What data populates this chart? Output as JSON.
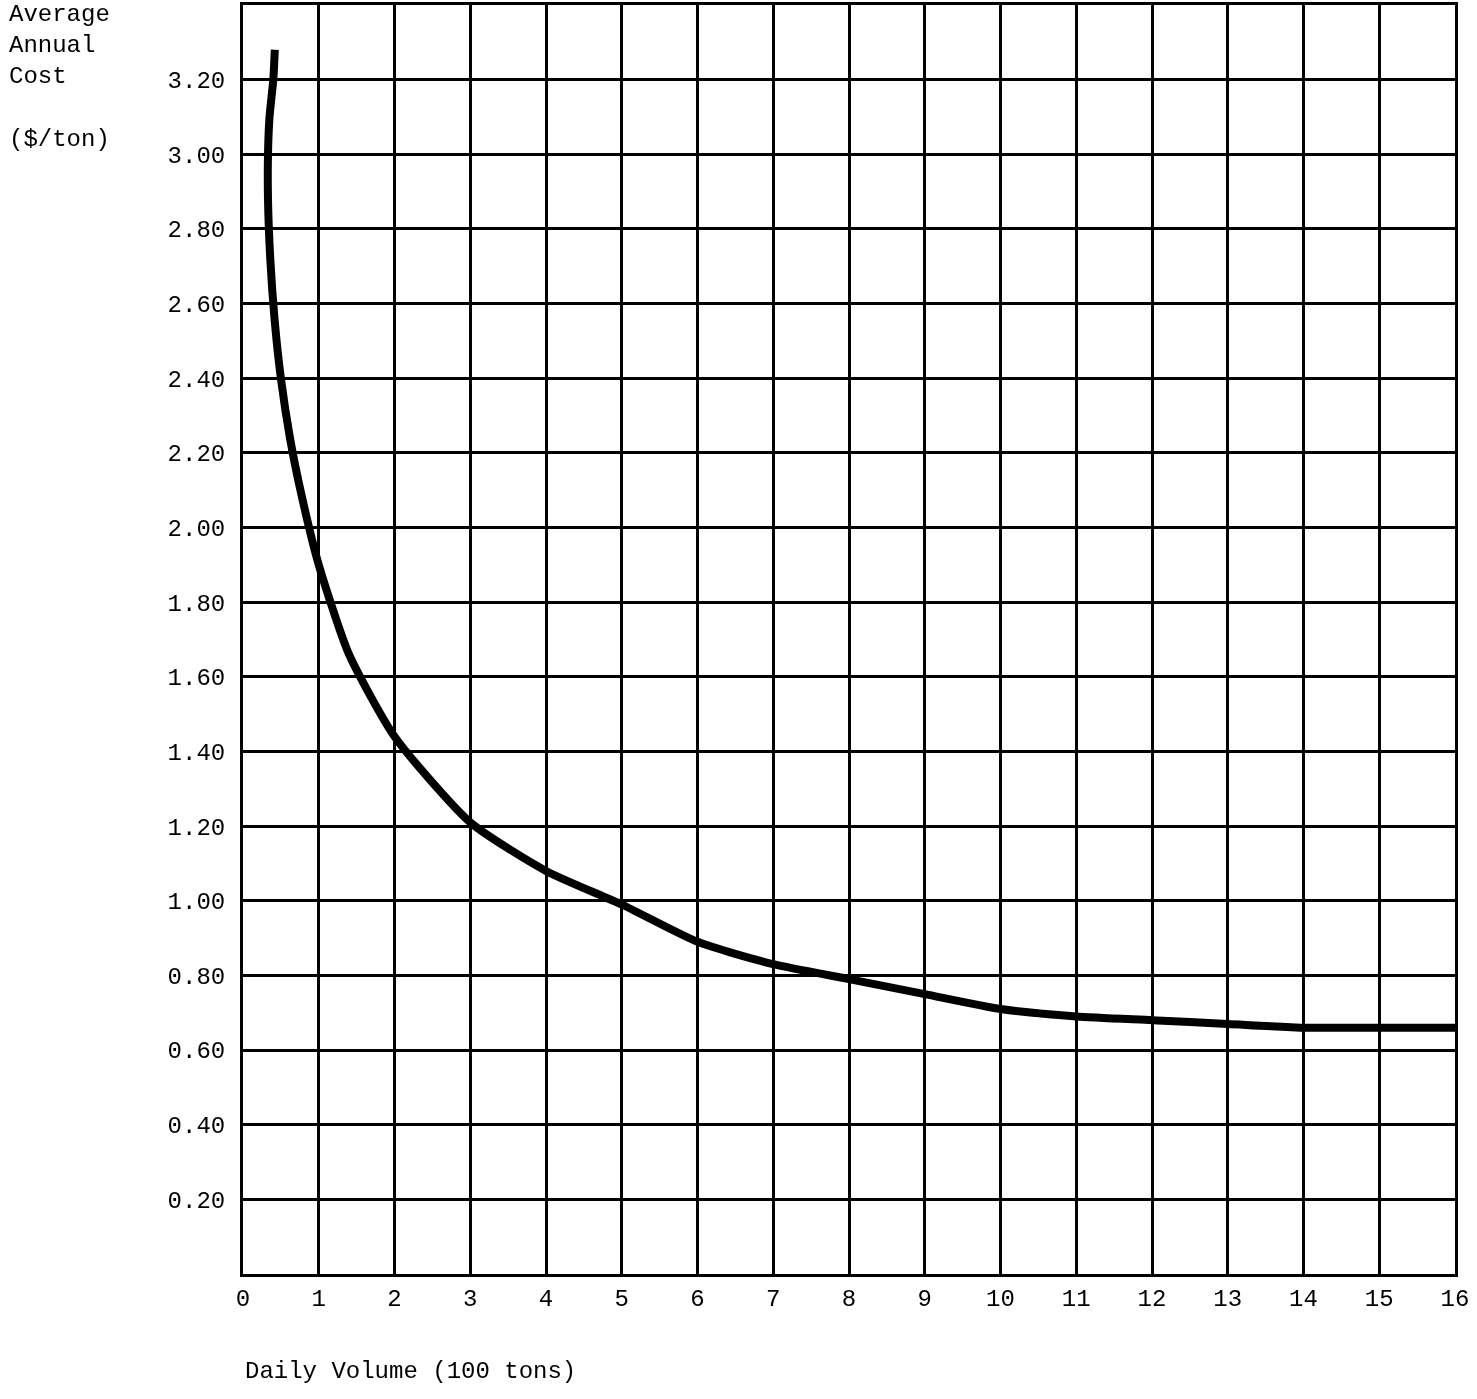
{
  "chart_data": {
    "type": "line",
    "xlabel": "Daily Volume (100 tons)",
    "ylabel": "Average\nAnnual\nCost\n\n($/ton)",
    "x": [
      0.42,
      0.4,
      0.35,
      0.33,
      0.33,
      0.36,
      0.42,
      0.5,
      0.62,
      0.78,
      1,
      1.4,
      2,
      3,
      4,
      5,
      6,
      7,
      8,
      9,
      10,
      11,
      12,
      13,
      14,
      15,
      16
    ],
    "series": [
      {
        "color": "#000000",
        "values": [
          3.28,
          3.2,
          3.1,
          3.0,
          2.88,
          2.72,
          2.55,
          2.4,
          2.24,
          2.08,
          1.9,
          1.66,
          1.44,
          1.21,
          1.08,
          0.99,
          0.89,
          0.83,
          0.79,
          0.75,
          0.71,
          0.69,
          0.68,
          0.67,
          0.66,
          0.66,
          0.66
        ]
      }
    ],
    "xlim": [
      0,
      16
    ],
    "ylim": [
      0,
      3.4
    ],
    "xticks": [
      0,
      1,
      2,
      3,
      4,
      5,
      6,
      7,
      8,
      9,
      10,
      11,
      12,
      13,
      14,
      15,
      16
    ],
    "yticks": [
      {
        "value": 0.2,
        "label": "0.20"
      },
      {
        "value": 0.4,
        "label": "0.40"
      },
      {
        "value": 0.6,
        "label": "0.60"
      },
      {
        "value": 0.8,
        "label": "0.80"
      },
      {
        "value": 1.0,
        "label": "1.00"
      },
      {
        "value": 1.2,
        "label": "1.20"
      },
      {
        "value": 1.4,
        "label": "1.40"
      },
      {
        "value": 1.6,
        "label": "1.60"
      },
      {
        "value": 1.8,
        "label": "1.80"
      },
      {
        "value": 2.0,
        "label": "2.00"
      },
      {
        "value": 2.2,
        "label": "2.20"
      },
      {
        "value": 2.4,
        "label": "2.40"
      },
      {
        "value": 2.6,
        "label": "2.60"
      },
      {
        "value": 2.8,
        "label": "2.80"
      },
      {
        "value": 3.0,
        "label": "3.00"
      },
      {
        "value": 3.2,
        "label": "3.20"
      }
    ],
    "grid": true,
    "marker": "none",
    "line_style": "solid"
  }
}
